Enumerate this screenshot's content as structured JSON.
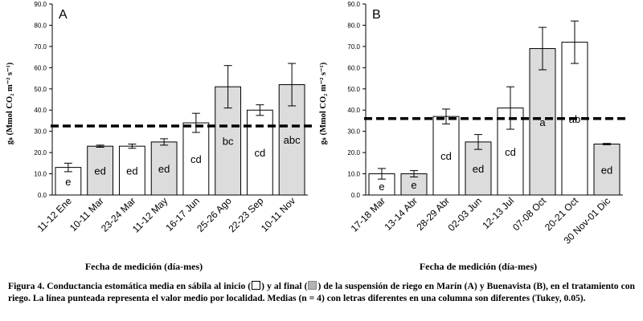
{
  "chart_data": [
    {
      "type": "bar",
      "panel_label": "A",
      "ylabel": "gₛ (Mmol CO₂ m⁻² s⁻¹)",
      "xlabel": "Fecha de medición (día-mes)",
      "ylim": [
        0,
        90
      ],
      "yticks": [
        "0.0",
        "10.0",
        "20.0",
        "30.0",
        "40.0",
        "50.0",
        "60.0",
        "70.0",
        "80.0",
        "90.0"
      ],
      "grid": false,
      "mean_line": 32.5,
      "categories": [
        "11-12 Ene",
        "10-11 Mar",
        "23-24 Mar",
        "11-12 May",
        "16-17 Jun",
        "25-26 Ago",
        "22-23 Sep",
        "10-11 Nov"
      ],
      "values": [
        13,
        23,
        23,
        25,
        34,
        51,
        40,
        52
      ],
      "errors": [
        2,
        0.5,
        1,
        1.5,
        4.5,
        10,
        2.5,
        10
      ],
      "letters": [
        "e",
        "ed",
        "ed",
        "ed",
        "cd",
        "bc",
        "cd",
        "abc"
      ],
      "fills": [
        "white",
        "gray",
        "white",
        "gray",
        "white",
        "gray",
        "white",
        "gray"
      ]
    },
    {
      "type": "bar",
      "panel_label": "B",
      "ylabel": "gₛ (Mmol CO₂ m⁻² s⁻¹)",
      "xlabel": "Fecha de medición (día-mes)",
      "ylim": [
        0,
        90
      ],
      "yticks": [
        "0.0",
        "10.0",
        "20.0",
        "30.0",
        "40.0",
        "50.0",
        "60.0",
        "70.0",
        "80.0",
        "90.0"
      ],
      "grid": false,
      "mean_line": 36,
      "categories": [
        "17-18 Mar",
        "13-14 Abr",
        "28-29 Abr",
        "02-03 Jun",
        "12-13 Jul",
        "07-08 Oct",
        "20-21 Oct",
        "30 Nov-01 Dic"
      ],
      "values": [
        10,
        10,
        37,
        25,
        41,
        69,
        72,
        24
      ],
      "errors": [
        2.5,
        1.5,
        3.5,
        3.5,
        10,
        10,
        10,
        0.3
      ],
      "letters": [
        "e",
        "e",
        "cd",
        "ed",
        "cd",
        "a",
        "ab",
        "ed"
      ],
      "fills": [
        "white",
        "gray",
        "white",
        "gray",
        "white",
        "gray",
        "white",
        "gray"
      ]
    }
  ],
  "colors": {
    "white_bar": "#ffffff",
    "gray_bar": "#dcdcdc",
    "outline": "#000000",
    "mean_line": "#000000"
  },
  "caption": {
    "part1": "Figura 4. Conductancia estomática media en sábila al inicio (",
    "part2": ") y al final (",
    "part3": ") de la suspensión de riego en Marín (A) y Buenavista (B), en el tratamiento con riego. La línea punteada representa el valor medio por localidad. Medias (n = 4) con letras diferentes en una columna son diferentes (Tukey, 0.05)."
  }
}
